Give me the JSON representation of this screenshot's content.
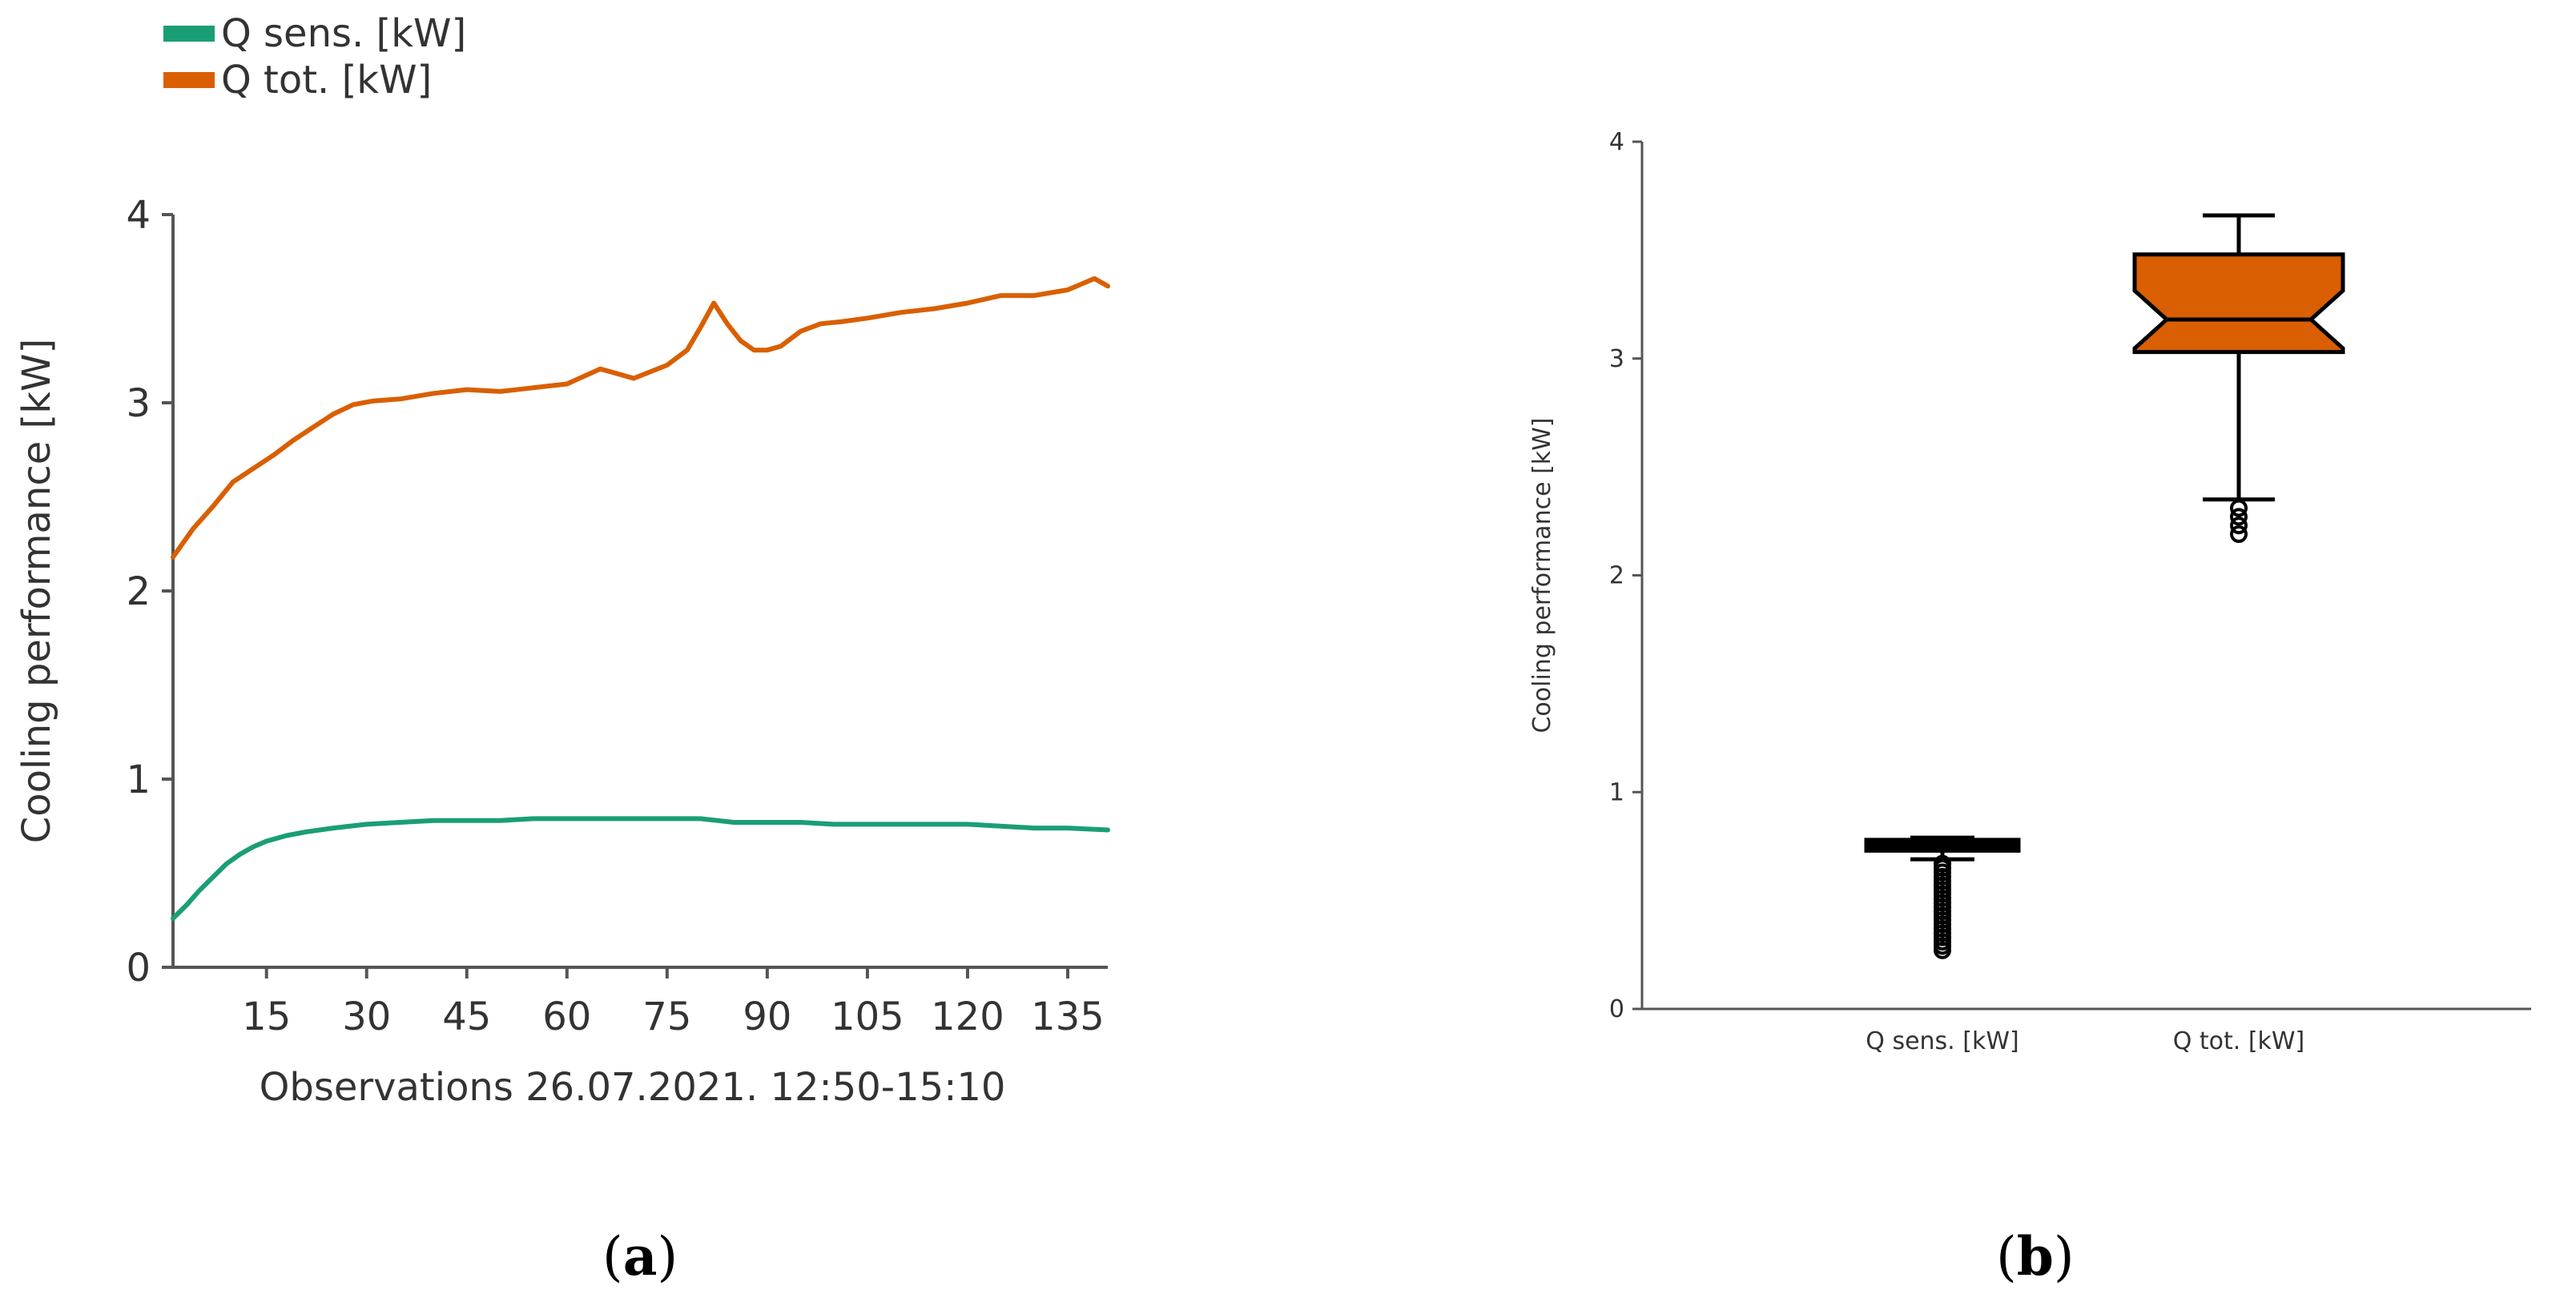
{
  "chart_data": [
    {
      "type": "line",
      "panel_label": "a",
      "title": "",
      "xlabel": "Observations 26.07.2021. 12:50-15:10",
      "ylabel": "Cooling performance [kW]",
      "xlim": [
        1,
        141
      ],
      "ylim": [
        0,
        4
      ],
      "x_ticks": [
        15,
        30,
        45,
        60,
        75,
        90,
        105,
        120,
        135
      ],
      "y_ticks": [
        0,
        1,
        2,
        3,
        4
      ],
      "grid": false,
      "legend_position": "top-left",
      "colors": {
        "q_sens": "#1a9e77",
        "q_tot": "#d95f02"
      },
      "series": [
        {
          "name": "Q sens. [kW]",
          "x": [
            1,
            3,
            5,
            7,
            9,
            11,
            13,
            15,
            18,
            21,
            25,
            30,
            35,
            40,
            45,
            50,
            55,
            60,
            65,
            70,
            75,
            80,
            85,
            90,
            95,
            100,
            105,
            110,
            115,
            120,
            125,
            130,
            135,
            141
          ],
          "y": [
            0.26,
            0.33,
            0.41,
            0.48,
            0.55,
            0.6,
            0.64,
            0.67,
            0.7,
            0.72,
            0.74,
            0.76,
            0.77,
            0.78,
            0.78,
            0.78,
            0.79,
            0.79,
            0.79,
            0.79,
            0.79,
            0.79,
            0.77,
            0.77,
            0.77,
            0.76,
            0.76,
            0.76,
            0.76,
            0.76,
            0.75,
            0.74,
            0.74,
            0.73
          ]
        },
        {
          "name": "Q tot. [kW]",
          "x": [
            1,
            4,
            7,
            10,
            13,
            16,
            19,
            22,
            25,
            28,
            31,
            35,
            40,
            45,
            50,
            55,
            60,
            65,
            70,
            75,
            78,
            80,
            82,
            84,
            86,
            88,
            90,
            92,
            95,
            98,
            101,
            105,
            110,
            115,
            120,
            125,
            130,
            135,
            139,
            141
          ],
          "y": [
            2.18,
            2.33,
            2.45,
            2.58,
            2.65,
            2.72,
            2.8,
            2.87,
            2.94,
            2.99,
            3.01,
            3.02,
            3.05,
            3.07,
            3.06,
            3.08,
            3.1,
            3.18,
            3.13,
            3.2,
            3.28,
            3.4,
            3.53,
            3.42,
            3.33,
            3.28,
            3.28,
            3.3,
            3.38,
            3.42,
            3.43,
            3.45,
            3.48,
            3.5,
            3.53,
            3.57,
            3.57,
            3.6,
            3.66,
            3.62
          ]
        }
      ]
    },
    {
      "type": "box",
      "panel_label": "b",
      "title": "",
      "xlabel": "",
      "ylabel": "Cooling performance [kW]",
      "ylim": [
        0,
        4
      ],
      "y_ticks": [
        0,
        1,
        2,
        3,
        4
      ],
      "grid": false,
      "categories": [
        "Q sens. [kW]",
        "Q tot. [kW]"
      ],
      "colors": {
        "q_sens": "#000000",
        "q_tot": "#d95f02"
      },
      "boxes": [
        {
          "name": "Q sens. [kW]",
          "whisker_low": 0.69,
          "q1": 0.73,
          "median": 0.76,
          "q3": 0.78,
          "whisker_high": 0.79,
          "outliers": [
            0.27,
            0.29,
            0.31,
            0.33,
            0.35,
            0.37,
            0.39,
            0.41,
            0.43,
            0.45,
            0.47,
            0.49,
            0.51,
            0.53,
            0.55,
            0.57,
            0.59,
            0.61,
            0.63,
            0.65,
            0.67
          ]
        },
        {
          "name": "Q tot. [kW]",
          "whisker_low": 2.35,
          "q1": 3.03,
          "median": 3.18,
          "q3": 3.48,
          "whisker_high": 3.66,
          "outliers": [
            2.19,
            2.23,
            2.27,
            2.31
          ]
        }
      ]
    }
  ]
}
